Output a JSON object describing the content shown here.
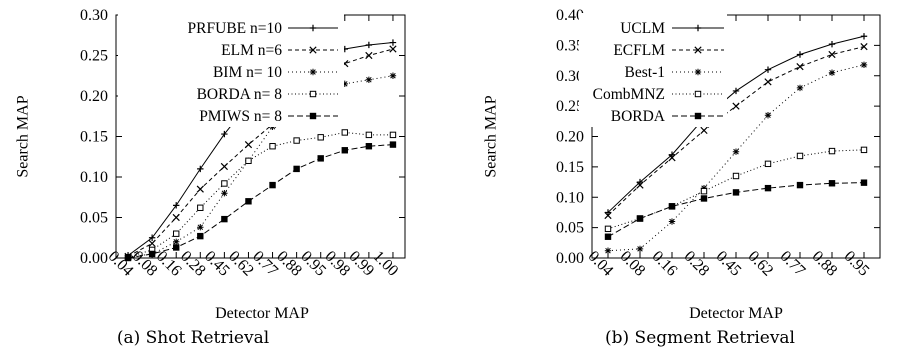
{
  "chart_data": [
    {
      "type": "line",
      "caption": "(a) Shot Retrieval",
      "xlabel": "Detector MAP",
      "ylabel": "Search MAP",
      "categories": [
        "0.04",
        "0.08",
        "0.16",
        "0.28",
        "0.45",
        "0.62",
        "0.77",
        "0.88",
        "0.95",
        "0.98",
        "0.99",
        "1.00"
      ],
      "ylim": [
        0,
        0.3
      ],
      "yticks": [
        "0.00",
        "0.05",
        "0.10",
        "0.15",
        "0.20",
        "0.25",
        "0.30"
      ],
      "legend_position": "top-left",
      "series": [
        {
          "name": "PRFUBE n=10",
          "marker": "plus",
          "dash": "",
          "values": [
            0.003,
            0.025,
            0.065,
            0.11,
            0.153,
            0.19,
            0.215,
            0.235,
            0.245,
            0.258,
            0.263,
            0.266
          ]
        },
        {
          "name": "ELM n=6",
          "marker": "x",
          "dash": "4,3",
          "values": [
            0.002,
            0.018,
            0.05,
            0.085,
            0.113,
            0.14,
            0.165,
            0.2,
            0.222,
            0.24,
            0.25,
            0.258
          ]
        },
        {
          "name": "BIM n= 10",
          "marker": "asterisk",
          "dash": "1,3",
          "values": [
            0.001,
            0.005,
            0.02,
            0.038,
            0.08,
            0.12,
            0.162,
            0.186,
            0.203,
            0.215,
            0.22,
            0.225
          ]
        },
        {
          "name": "BORDA n= 8",
          "marker": "square-open",
          "dash": "1,2.5",
          "values": [
            0.001,
            0.01,
            0.03,
            0.062,
            0.092,
            0.12,
            0.138,
            0.145,
            0.149,
            0.155,
            0.152,
            0.152
          ]
        },
        {
          "name": "PMIWS n= 8",
          "marker": "square-filled",
          "dash": "6,3",
          "values": [
            0.0,
            0.005,
            0.013,
            0.027,
            0.048,
            0.07,
            0.09,
            0.11,
            0.123,
            0.133,
            0.138,
            0.14
          ]
        }
      ]
    },
    {
      "type": "line",
      "caption": "(b) Segment Retrieval",
      "xlabel": "Detector MAP",
      "ylabel": "Search MAP",
      "categories": [
        "0.04",
        "0.08",
        "0.16",
        "0.28",
        "0.45",
        "0.62",
        "0.77",
        "0.88",
        "0.95"
      ],
      "ylim": [
        0,
        0.4
      ],
      "yticks": [
        "0.00",
        "0.05",
        "0.10",
        "0.15",
        "0.20",
        "0.25",
        "0.30",
        "0.35",
        "0.40"
      ],
      "legend_position": "top-left",
      "series": [
        {
          "name": "UCLM",
          "marker": "plus",
          "dash": "",
          "values": [
            0.075,
            0.125,
            0.17,
            0.23,
            0.275,
            0.31,
            0.335,
            0.352,
            0.365
          ]
        },
        {
          "name": "ECFLM",
          "marker": "x",
          "dash": "4,3",
          "values": [
            0.07,
            0.12,
            0.165,
            0.21,
            0.25,
            0.29,
            0.315,
            0.335,
            0.348
          ]
        },
        {
          "name": "Best-1",
          "marker": "asterisk",
          "dash": "1,3",
          "values": [
            0.012,
            0.015,
            0.06,
            0.115,
            0.175,
            0.235,
            0.28,
            0.305,
            0.318
          ]
        },
        {
          "name": "CombMNZ",
          "marker": "square-open",
          "dash": "1,2.5",
          "values": [
            0.048,
            0.065,
            0.085,
            0.11,
            0.135,
            0.155,
            0.168,
            0.176,
            0.178
          ]
        },
        {
          "name": "BORDA",
          "marker": "square-filled",
          "dash": "6,3",
          "values": [
            0.035,
            0.065,
            0.085,
            0.098,
            0.108,
            0.115,
            0.12,
            0.123,
            0.124
          ]
        }
      ]
    }
  ]
}
